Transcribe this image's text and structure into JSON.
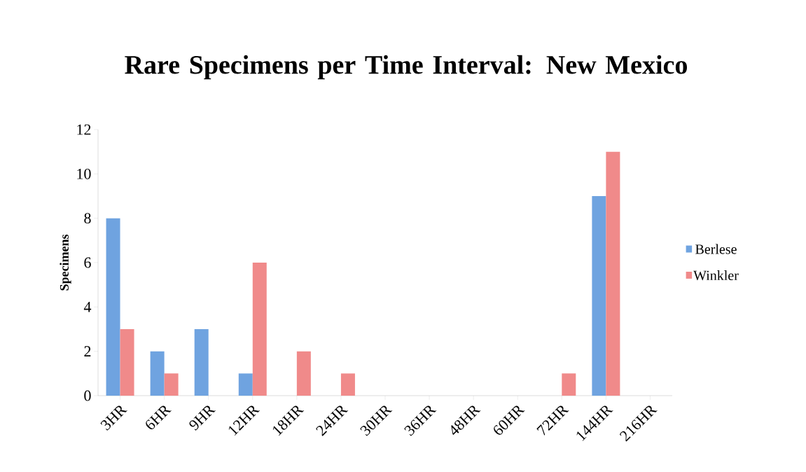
{
  "chart_data": {
    "type": "bar",
    "title": "Rare Specimens per Time Interval: New Mexico",
    "ylabel": "Specimens",
    "categories": [
      "3HR",
      "6HR",
      "9HR",
      "12HR",
      "18HR",
      "24HR",
      "30HR",
      "36HR",
      "48HR",
      "60HR",
      "72HR",
      "144HR",
      "216HR"
    ],
    "series": [
      {
        "name": "Berlese",
        "color": "#6fa3e0",
        "values": [
          8,
          2,
          3,
          1,
          0,
          0,
          0,
          0,
          0,
          0,
          0,
          9,
          0
        ]
      },
      {
        "name": "Winkler",
        "color": "#f08a8a",
        "values": [
          3,
          1,
          0,
          6,
          2,
          1,
          0,
          0,
          0,
          0,
          1,
          11,
          0
        ]
      }
    ],
    "ylim": [
      0,
      12
    ],
    "yticks": [
      0,
      2,
      4,
      6,
      8,
      10,
      12
    ],
    "legend": "right"
  }
}
